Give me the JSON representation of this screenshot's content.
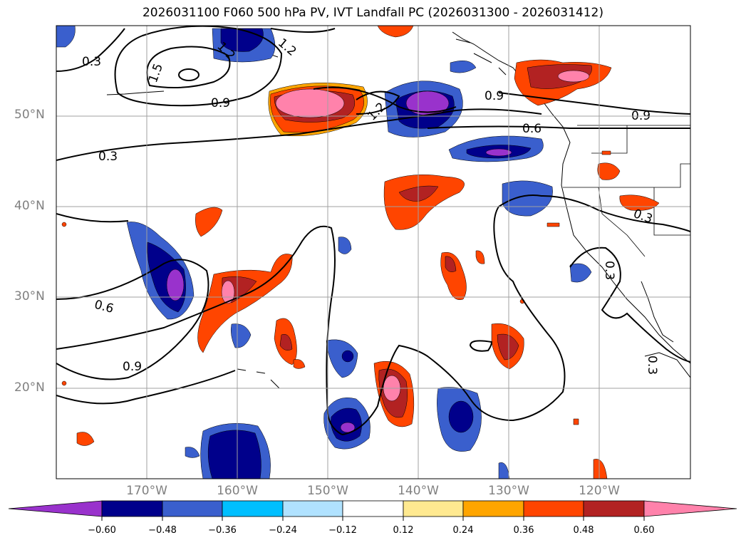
{
  "title": "2026031100 F060 500 hPa PV, IVT Landfall PC (2026031300 - 2026031412)",
  "map": {
    "projection": "PlateCarree",
    "extent": {
      "lon_min": -180,
      "lon_max": -110,
      "lat_min": 10,
      "lat_max": 60
    },
    "lat_labels": [
      "50°N",
      "40°N",
      "30°N",
      "20°N"
    ],
    "lon_labels": [
      "170°W",
      "160°W",
      "150°W",
      "140°W",
      "130°W",
      "120°W"
    ],
    "contour_labels": [
      "0.3",
      "1.5",
      "1.2",
      "0.9",
      "1.2",
      "0.9",
      "0.6",
      "0.9",
      "0.3",
      "0.3",
      "0.6",
      "0.9",
      "0.3",
      "0.3",
      "1.2"
    ]
  },
  "colorbar": {
    "ticks": [
      "−0.60",
      "−0.48",
      "−0.36",
      "−0.24",
      "−0.12",
      "0.12",
      "0.24",
      "0.36",
      "0.48",
      "0.60"
    ],
    "colors": [
      "#9932cc",
      "#00008b",
      "#3a5fcd",
      "#00bfff",
      "#b0e2ff",
      "#ffffff",
      "#ffe990",
      "#ffa500",
      "#ff4500",
      "#b22222",
      "#ff82ab"
    ],
    "extend": "both"
  }
}
